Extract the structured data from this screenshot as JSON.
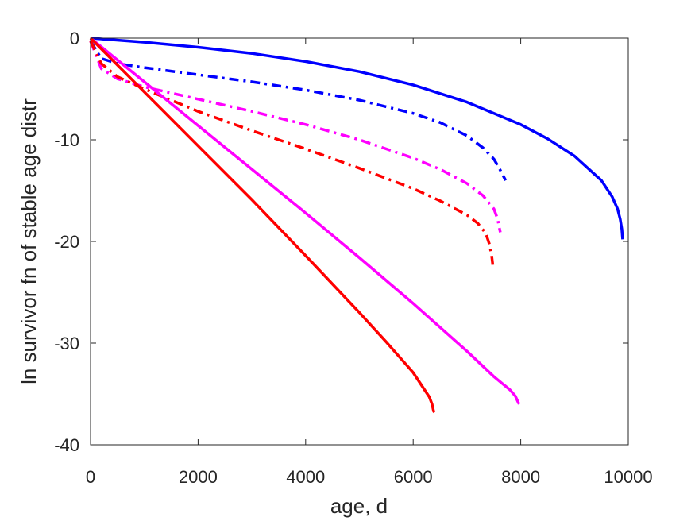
{
  "chart_data": {
    "type": "line",
    "title": "",
    "xlabel": "age, d",
    "ylabel": "ln survivor fn of stable age distr",
    "xlim": [
      0,
      10000
    ],
    "ylim": [
      -40,
      0
    ],
    "xticks": [
      0,
      2000,
      4000,
      6000,
      8000,
      10000
    ],
    "yticks": [
      0,
      -10,
      -20,
      -30,
      -40
    ],
    "xtick_labels": [
      "0",
      "2000",
      "4000",
      "6000",
      "8000",
      "10000"
    ],
    "ytick_labels": [
      "0",
      "-10",
      "-20",
      "-30",
      "-40"
    ],
    "grid": false,
    "legend": "none",
    "series": [
      {
        "color": "#0000ff",
        "style": "solid",
        "points": [
          [
            0,
            0
          ],
          [
            1000,
            -0.4
          ],
          [
            2000,
            -0.9
          ],
          [
            3000,
            -1.5
          ],
          [
            4000,
            -2.3
          ],
          [
            5000,
            -3.3
          ],
          [
            6000,
            -4.6
          ],
          [
            7000,
            -6.3
          ],
          [
            8000,
            -8.5
          ],
          [
            8500,
            -9.9
          ],
          [
            9000,
            -11.6
          ],
          [
            9500,
            -14.0
          ],
          [
            9700,
            -15.6
          ],
          [
            9800,
            -16.8
          ],
          [
            9850,
            -17.8
          ],
          [
            9880,
            -18.8
          ],
          [
            9895,
            -19.8
          ]
        ]
      },
      {
        "color": "#0000ff",
        "style": "dashdot",
        "points": [
          [
            0,
            -0.3
          ],
          [
            200,
            -2.0
          ],
          [
            500,
            -2.5
          ],
          [
            1000,
            -2.9
          ],
          [
            2000,
            -3.6
          ],
          [
            3000,
            -4.3
          ],
          [
            4000,
            -5.1
          ],
          [
            5000,
            -6.1
          ],
          [
            6000,
            -7.4
          ],
          [
            6500,
            -8.3
          ],
          [
            7000,
            -9.6
          ],
          [
            7300,
            -10.8
          ],
          [
            7500,
            -11.9
          ],
          [
            7600,
            -12.8
          ],
          [
            7680,
            -13.6
          ],
          [
            7720,
            -14.0
          ]
        ]
      },
      {
        "color": "#ff00ff",
        "style": "dashdot",
        "points": [
          [
            0,
            -0.3
          ],
          [
            200,
            -3.0
          ],
          [
            500,
            -4.0
          ],
          [
            1000,
            -4.8
          ],
          [
            2000,
            -6.0
          ],
          [
            3000,
            -7.2
          ],
          [
            4000,
            -8.5
          ],
          [
            5000,
            -10.0
          ],
          [
            6000,
            -11.8
          ],
          [
            6500,
            -12.9
          ],
          [
            7000,
            -14.3
          ],
          [
            7300,
            -15.5
          ],
          [
            7500,
            -16.8
          ],
          [
            7570,
            -17.8
          ],
          [
            7600,
            -18.6
          ],
          [
            7620,
            -19.1
          ]
        ]
      },
      {
        "color": "#ff0000",
        "style": "dashdot",
        "points": [
          [
            0,
            -0.3
          ],
          [
            200,
            -2.5
          ],
          [
            500,
            -3.8
          ],
          [
            1000,
            -5.0
          ],
          [
            2000,
            -7.2
          ],
          [
            3000,
            -9.1
          ],
          [
            4000,
            -10.9
          ],
          [
            5000,
            -12.8
          ],
          [
            6000,
            -14.8
          ],
          [
            6500,
            -16.0
          ],
          [
            7000,
            -17.4
          ],
          [
            7200,
            -18.2
          ],
          [
            7350,
            -19.2
          ],
          [
            7420,
            -20.3
          ],
          [
            7460,
            -21.4
          ],
          [
            7480,
            -22.3
          ]
        ]
      },
      {
        "color": "#ff00ff",
        "style": "solid",
        "points": [
          [
            0,
            0
          ],
          [
            1000,
            -4.3
          ],
          [
            2000,
            -8.6
          ],
          [
            3000,
            -12.9
          ],
          [
            4000,
            -17.2
          ],
          [
            5000,
            -21.6
          ],
          [
            6000,
            -26.1
          ],
          [
            7000,
            -30.8
          ],
          [
            7500,
            -33.3
          ],
          [
            7800,
            -34.6
          ],
          [
            7900,
            -35.2
          ],
          [
            7950,
            -35.8
          ],
          [
            7970,
            -36.0
          ]
        ]
      },
      {
        "color": "#ff0000",
        "style": "solid",
        "points": [
          [
            0,
            0
          ],
          [
            1000,
            -5.3
          ],
          [
            2000,
            -10.6
          ],
          [
            3000,
            -15.9
          ],
          [
            4000,
            -21.4
          ],
          [
            5000,
            -27.0
          ],
          [
            5500,
            -29.9
          ],
          [
            6000,
            -32.9
          ],
          [
            6200,
            -34.5
          ],
          [
            6300,
            -35.3
          ],
          [
            6350,
            -36.0
          ],
          [
            6380,
            -36.7
          ],
          [
            6400,
            -36.8
          ]
        ]
      }
    ]
  }
}
